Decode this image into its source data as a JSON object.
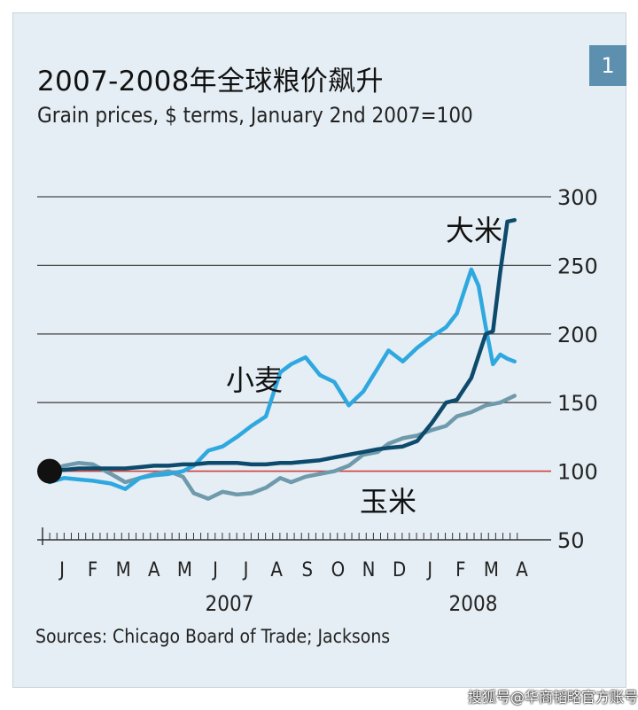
{
  "header": {
    "title": "2007-2008年全球粮价飙升",
    "subtitle": "Grain prices, $ terms, January 2nd 2007=100",
    "badge": "1"
  },
  "footer": {
    "source": "Sources: Chicago Board of Trade; Jacksons",
    "watermark": "搜狐号@华商韬略官方账号"
  },
  "colors": {
    "background": "#e5eef4",
    "gridline": "#4a4a4a",
    "baseline": "#d0413c",
    "wheat": "#2fa8e0",
    "corn": "#6e9aab",
    "rice": "#0d4a6b",
    "badge": "#5d8fae"
  },
  "chart_data": {
    "type": "line",
    "title": "2007-2008年全球粮价飙升",
    "subtitle": "Grain prices, $ terms, January 2nd 2007=100",
    "ylim": [
      50,
      300
    ],
    "yticks": [
      50,
      100,
      150,
      200,
      250,
      300
    ],
    "y_axis_position": "right",
    "baseline": 100,
    "grid": true,
    "x_start": 2007.0,
    "x_end": 2008.33,
    "month_labels": [
      "J",
      "F",
      "M",
      "A",
      "M",
      "J",
      "J",
      "A",
      "S",
      "O",
      "N",
      "D",
      "J",
      "F",
      "M",
      "A"
    ],
    "year_labels": [
      "2007",
      "2008"
    ],
    "start_marker": {
      "x": 2007.0,
      "y": 100
    },
    "series": [
      {
        "name": "小麦",
        "color": "#2fa8e0",
        "x": [
          2007.0,
          2007.04,
          2007.08,
          2007.12,
          2007.17,
          2007.21,
          2007.25,
          2007.29,
          2007.33,
          2007.37,
          2007.4,
          2007.44,
          2007.48,
          2007.52,
          2007.56,
          2007.6,
          2007.64,
          2007.67,
          2007.71,
          2007.75,
          2007.79,
          2007.83,
          2007.87,
          2007.91,
          2007.94,
          2007.98,
          2008.02,
          2008.06,
          2008.1,
          2008.13,
          2008.17,
          2008.19,
          2008.21,
          2008.23,
          2008.25,
          2008.27,
          2008.29
        ],
        "y": [
          92,
          95,
          94,
          93,
          91,
          87,
          95,
          97,
          98,
          100,
          104,
          115,
          118,
          125,
          133,
          140,
          172,
          178,
          183,
          170,
          165,
          148,
          158,
          175,
          188,
          180,
          190,
          198,
          205,
          215,
          247,
          235,
          205,
          178,
          185,
          182,
          180
        ]
      },
      {
        "name": "玉米",
        "color": "#6e9aab",
        "x": [
          2007.0,
          2007.04,
          2007.08,
          2007.12,
          2007.17,
          2007.21,
          2007.25,
          2007.29,
          2007.33,
          2007.37,
          2007.4,
          2007.44,
          2007.48,
          2007.52,
          2007.56,
          2007.6,
          2007.64,
          2007.67,
          2007.71,
          2007.75,
          2007.79,
          2007.83,
          2007.87,
          2007.91,
          2007.94,
          2007.98,
          2008.02,
          2008.06,
          2008.1,
          2008.13,
          2008.17,
          2008.21,
          2008.25,
          2008.29
        ],
        "y": [
          100,
          104,
          106,
          105,
          98,
          92,
          95,
          98,
          100,
          96,
          84,
          80,
          85,
          83,
          84,
          88,
          95,
          92,
          96,
          98,
          100,
          104,
          112,
          114,
          120,
          124,
          126,
          130,
          133,
          140,
          143,
          148,
          150,
          155
        ]
      },
      {
        "name": "大米",
        "color": "#0d4a6b",
        "x": [
          2007.0,
          2007.04,
          2007.08,
          2007.12,
          2007.17,
          2007.21,
          2007.25,
          2007.29,
          2007.33,
          2007.37,
          2007.4,
          2007.44,
          2007.48,
          2007.52,
          2007.56,
          2007.6,
          2007.64,
          2007.67,
          2007.71,
          2007.75,
          2007.79,
          2007.83,
          2007.87,
          2007.91,
          2007.94,
          2007.98,
          2008.02,
          2008.06,
          2008.1,
          2008.13,
          2008.17,
          2008.21,
          2008.23,
          2008.25,
          2008.27,
          2008.29
        ],
        "y": [
          100,
          101,
          102,
          102,
          102,
          102,
          103,
          104,
          104,
          105,
          105,
          106,
          106,
          106,
          105,
          105,
          106,
          106,
          107,
          108,
          110,
          112,
          114,
          116,
          117,
          118,
          122,
          135,
          150,
          152,
          168,
          200,
          202,
          245,
          282,
          283
        ]
      }
    ]
  }
}
